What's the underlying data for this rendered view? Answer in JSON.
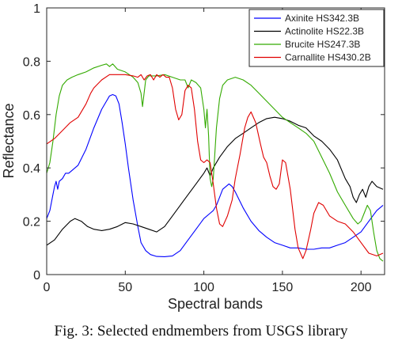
{
  "caption": "Fig. 3: Selected endmembers from USGS library",
  "chart_data": {
    "type": "line",
    "title": "",
    "xlabel": "Spectral bands",
    "ylabel": "Reflectance",
    "xlim": [
      0,
      215
    ],
    "ylim": [
      0,
      1
    ],
    "xticks": [
      0,
      50,
      100,
      150,
      200
    ],
    "yticks": [
      0,
      0.2,
      0.4,
      0.6,
      0.8,
      1
    ],
    "ytick_labels": [
      "0",
      "0.2",
      "0.4",
      "0.6",
      "0.8",
      "1"
    ],
    "grid": false,
    "legend_position": "top-right",
    "series": [
      {
        "name": "Axinite HS342.3B",
        "color": "#0000ff",
        "x": [
          0,
          2,
          4,
          5,
          6,
          7,
          8,
          10,
          12,
          14,
          16,
          20,
          25,
          30,
          35,
          38,
          40,
          42,
          44,
          46,
          48,
          50,
          52,
          55,
          58,
          60,
          63,
          66,
          70,
          75,
          80,
          85,
          90,
          95,
          100,
          104,
          106,
          108,
          110,
          112,
          114,
          116,
          118,
          120,
          125,
          130,
          135,
          140,
          145,
          150,
          155,
          160,
          165,
          170,
          175,
          180,
          185,
          190,
          195,
          200,
          205,
          210,
          214
        ],
        "y": [
          0.21,
          0.24,
          0.3,
          0.33,
          0.35,
          0.32,
          0.35,
          0.36,
          0.38,
          0.38,
          0.39,
          0.41,
          0.47,
          0.55,
          0.62,
          0.65,
          0.67,
          0.675,
          0.67,
          0.64,
          0.57,
          0.49,
          0.4,
          0.28,
          0.18,
          0.12,
          0.09,
          0.075,
          0.068,
          0.067,
          0.07,
          0.09,
          0.13,
          0.17,
          0.21,
          0.23,
          0.24,
          0.26,
          0.29,
          0.32,
          0.33,
          0.34,
          0.33,
          0.31,
          0.25,
          0.2,
          0.165,
          0.14,
          0.12,
          0.11,
          0.1,
          0.1,
          0.095,
          0.095,
          0.1,
          0.1,
          0.11,
          0.12,
          0.14,
          0.16,
          0.2,
          0.24,
          0.26
        ]
      },
      {
        "name": "Actinolite HS22.3B",
        "color": "#000000",
        "x": [
          0,
          5,
          10,
          15,
          18,
          22,
          26,
          30,
          35,
          40,
          45,
          50,
          55,
          60,
          65,
          70,
          75,
          80,
          85,
          90,
          95,
          100,
          102,
          104,
          106,
          110,
          115,
          120,
          125,
          130,
          135,
          140,
          145,
          150,
          155,
          160,
          165,
          170,
          175,
          180,
          185,
          190,
          193,
          195,
          197,
          199,
          201,
          203,
          205,
          207,
          210,
          214
        ],
        "y": [
          0.11,
          0.13,
          0.17,
          0.2,
          0.21,
          0.2,
          0.18,
          0.17,
          0.165,
          0.17,
          0.18,
          0.195,
          0.19,
          0.18,
          0.17,
          0.16,
          0.18,
          0.22,
          0.26,
          0.3,
          0.34,
          0.38,
          0.4,
          0.37,
          0.4,
          0.44,
          0.48,
          0.51,
          0.53,
          0.55,
          0.57,
          0.585,
          0.59,
          0.585,
          0.575,
          0.56,
          0.55,
          0.52,
          0.5,
          0.47,
          0.43,
          0.36,
          0.33,
          0.29,
          0.27,
          0.3,
          0.32,
          0.29,
          0.33,
          0.35,
          0.33,
          0.32
        ]
      },
      {
        "name": "Brucite HS247.3B",
        "color": "#33aa00",
        "x": [
          0,
          2,
          4,
          6,
          8,
          10,
          13,
          16,
          20,
          25,
          30,
          35,
          38,
          40,
          42,
          45,
          50,
          55,
          58,
          60,
          61,
          62,
          63,
          65,
          70,
          75,
          80,
          85,
          88,
          90,
          92,
          95,
          98,
          100,
          101,
          102,
          103,
          104,
          105,
          106,
          108,
          110,
          112,
          115,
          120,
          125,
          130,
          135,
          140,
          145,
          150,
          155,
          160,
          165,
          170,
          175,
          180,
          185,
          190,
          195,
          198,
          200,
          202,
          204,
          206,
          208,
          210,
          212,
          214
        ],
        "y": [
          0.38,
          0.42,
          0.5,
          0.6,
          0.67,
          0.71,
          0.73,
          0.74,
          0.75,
          0.76,
          0.775,
          0.785,
          0.79,
          0.78,
          0.79,
          0.77,
          0.76,
          0.74,
          0.72,
          0.68,
          0.63,
          0.68,
          0.73,
          0.745,
          0.745,
          0.75,
          0.74,
          0.73,
          0.73,
          0.7,
          0.73,
          0.72,
          0.7,
          0.62,
          0.55,
          0.62,
          0.52,
          0.36,
          0.33,
          0.36,
          0.55,
          0.66,
          0.71,
          0.73,
          0.74,
          0.73,
          0.71,
          0.68,
          0.65,
          0.62,
          0.59,
          0.57,
          0.55,
          0.53,
          0.5,
          0.44,
          0.38,
          0.31,
          0.26,
          0.21,
          0.19,
          0.2,
          0.23,
          0.26,
          0.24,
          0.16,
          0.09,
          0.06,
          0.05
        ]
      },
      {
        "name": "Carnallite HS430.2B",
        "color": "#e00000",
        "x": [
          0,
          5,
          10,
          15,
          20,
          25,
          28,
          30,
          35,
          40,
          45,
          50,
          55,
          58,
          60,
          62,
          64,
          66,
          68,
          70,
          72,
          74,
          76,
          78,
          80,
          82,
          84,
          86,
          88,
          90,
          92,
          94,
          96,
          98,
          100,
          102,
          104,
          106,
          108,
          110,
          112,
          115,
          118,
          120,
          123,
          126,
          128,
          130,
          133,
          136,
          138,
          140,
          142,
          144,
          146,
          148,
          150,
          152,
          155,
          158,
          160,
          163,
          165,
          168,
          170,
          173,
          176,
          180,
          185,
          190,
          195,
          200,
          205,
          210,
          214
        ],
        "y": [
          0.49,
          0.51,
          0.54,
          0.57,
          0.59,
          0.64,
          0.68,
          0.7,
          0.73,
          0.75,
          0.75,
          0.75,
          0.745,
          0.74,
          0.75,
          0.73,
          0.745,
          0.75,
          0.73,
          0.75,
          0.74,
          0.75,
          0.74,
          0.74,
          0.7,
          0.62,
          0.58,
          0.6,
          0.69,
          0.71,
          0.7,
          0.62,
          0.5,
          0.43,
          0.42,
          0.43,
          0.42,
          0.34,
          0.25,
          0.19,
          0.18,
          0.22,
          0.28,
          0.36,
          0.45,
          0.55,
          0.59,
          0.61,
          0.57,
          0.49,
          0.44,
          0.42,
          0.37,
          0.33,
          0.32,
          0.34,
          0.43,
          0.42,
          0.32,
          0.17,
          0.1,
          0.06,
          0.09,
          0.17,
          0.23,
          0.27,
          0.26,
          0.22,
          0.2,
          0.19,
          0.16,
          0.12,
          0.08,
          0.07,
          0.08
        ]
      }
    ]
  }
}
